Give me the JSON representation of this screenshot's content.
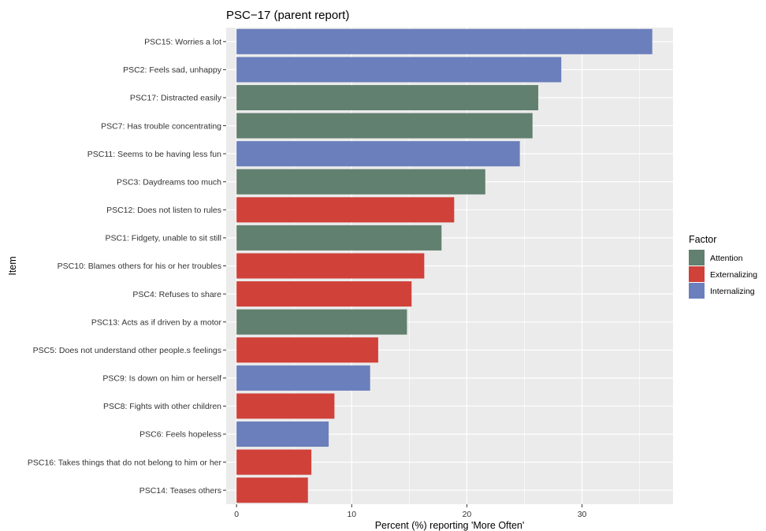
{
  "chart_data": {
    "type": "bar",
    "orientation": "horizontal",
    "title": "PSC−17 (parent report)",
    "xlabel": "Percent (%) reporting 'More Often'",
    "ylabel": "Item",
    "xlim": [
      -0.9,
      37.9
    ],
    "x_ticks": [
      0,
      10,
      20,
      30
    ],
    "grid": true,
    "legend": {
      "title": "Factor",
      "position": "right",
      "entries": [
        {
          "name": "Attention",
          "color": "#62806f"
        },
        {
          "name": "Externalizing",
          "color": "#d0413a"
        },
        {
          "name": "Internalizing",
          "color": "#6a7fbb"
        }
      ]
    },
    "bars": [
      {
        "item": "PSC15: Worries a lot",
        "value": 36.1,
        "factor": "Internalizing"
      },
      {
        "item": "PSC2: Feels sad, unhappy",
        "value": 28.2,
        "factor": "Internalizing"
      },
      {
        "item": "PSC17: Distracted easily",
        "value": 26.2,
        "factor": "Attention"
      },
      {
        "item": "PSC7: Has trouble concentrating",
        "value": 25.7,
        "factor": "Attention"
      },
      {
        "item": "PSC11: Seems to be having less fun",
        "value": 24.6,
        "factor": "Internalizing"
      },
      {
        "item": "PSC3: Daydreams too much",
        "value": 21.6,
        "factor": "Attention"
      },
      {
        "item": "PSC12: Does not listen to rules",
        "value": 18.9,
        "factor": "Externalizing"
      },
      {
        "item": "PSC1: Fidgety, unable to sit still",
        "value": 17.8,
        "factor": "Attention"
      },
      {
        "item": "PSC10: Blames others for his or her troubles",
        "value": 16.3,
        "factor": "Externalizing"
      },
      {
        "item": "PSC4: Refuses to share",
        "value": 15.2,
        "factor": "Externalizing"
      },
      {
        "item": "PSC13: Acts as if driven by a motor",
        "value": 14.8,
        "factor": "Attention"
      },
      {
        "item": "PSC5: Does not understand other people.s feelings",
        "value": 12.3,
        "factor": "Externalizing"
      },
      {
        "item": "PSC9: Is down on him or herself",
        "value": 11.6,
        "factor": "Internalizing"
      },
      {
        "item": "PSC8: Fights with other children",
        "value": 8.5,
        "factor": "Externalizing"
      },
      {
        "item": "PSC6: Feels hopeless",
        "value": 8.0,
        "factor": "Internalizing"
      },
      {
        "item": "PSC16: Takes things that do not belong to him or her",
        "value": 6.5,
        "factor": "Externalizing"
      },
      {
        "item": "PSC14: Teases others",
        "value": 6.2,
        "factor": "Externalizing"
      }
    ]
  }
}
